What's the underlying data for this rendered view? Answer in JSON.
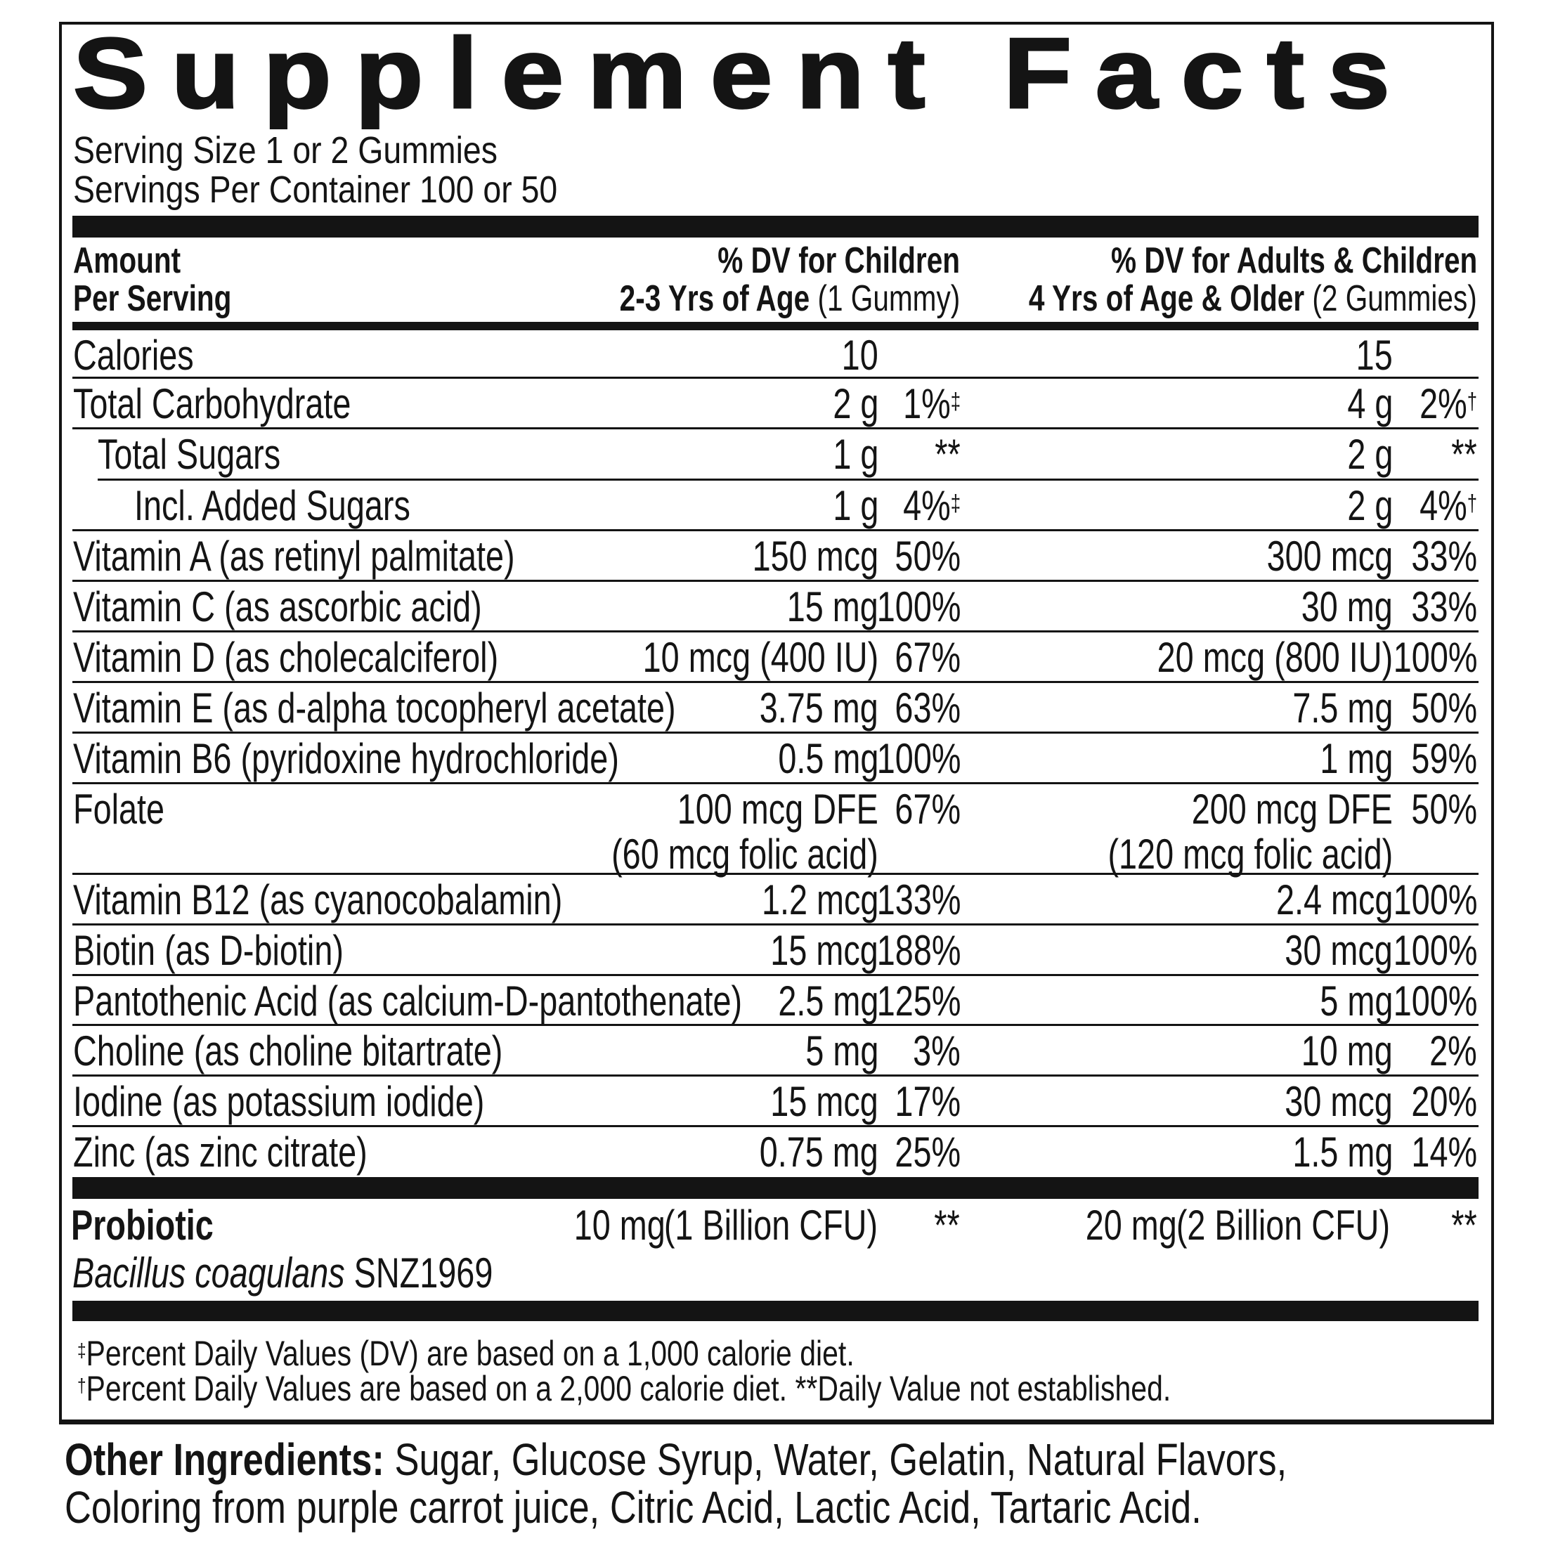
{
  "title": "Supplement Facts",
  "serving_size": "Serving Size 1 or 2 Gummies",
  "servings_per_container": "Servings Per Container 100 or 50",
  "header": {
    "amount_line1": "Amount",
    "amount_line2": "Per Serving",
    "children_line1": "% DV for Children",
    "children_line2_bold": "2-3 Yrs of Age",
    "children_line2_note": "(1 Gummy)",
    "adults_line1": "% DV for Adults & Children",
    "adults_line2_bold": "4 Yrs of Age & Older",
    "adults_line2_note": "(2 Gummies)"
  },
  "rows": [
    {
      "label": "Calories",
      "level": 0,
      "child_amount": "10",
      "child_dv": "",
      "child_mark": "",
      "adult_amount": "15",
      "adult_dv": "",
      "adult_mark": ""
    },
    {
      "label": "Total Carbohydrate",
      "level": 0,
      "child_amount": "2 g",
      "child_dv": "1%",
      "child_mark": "‡",
      "adult_amount": "4 g",
      "adult_dv": "2%",
      "adult_mark": "†"
    },
    {
      "label": "Total Sugars",
      "level": 1,
      "child_amount": "1 g",
      "child_dv": "**",
      "child_mark": "",
      "adult_amount": "2 g",
      "adult_dv": "**",
      "adult_mark": ""
    },
    {
      "label": "Incl. Added Sugars",
      "level": 2,
      "child_amount": "1 g",
      "child_dv": "4%",
      "child_mark": "‡",
      "adult_amount": "2 g",
      "adult_dv": "4%",
      "adult_mark": "†"
    },
    {
      "label": "Vitamin A (as retinyl palmitate)",
      "level": 0,
      "child_amount": "150 mcg",
      "child_dv": "50%",
      "child_mark": "",
      "adult_amount": "300 mcg",
      "adult_dv": "33%",
      "adult_mark": ""
    },
    {
      "label": "Vitamin C (as ascorbic acid)",
      "level": 0,
      "child_amount": "15 mg",
      "child_dv": "100%",
      "child_mark": "",
      "adult_amount": "30 mg",
      "adult_dv": "33%",
      "adult_mark": ""
    },
    {
      "label": "Vitamin D (as cholecalciferol)",
      "level": 0,
      "child_amount": "10 mcg (400 IU)",
      "child_dv": "67%",
      "child_mark": "",
      "adult_amount": "20 mcg (800 IU)",
      "adult_dv": "100%",
      "adult_mark": ""
    },
    {
      "label": "Vitamin E (as d-alpha tocopheryl acetate)",
      "level": 0,
      "child_amount": "3.75 mg",
      "child_dv": "63%",
      "child_mark": "",
      "adult_amount": "7.5 mg",
      "adult_dv": "50%",
      "adult_mark": ""
    },
    {
      "label": "Vitamin B6 (pyridoxine hydrochloride)",
      "level": 0,
      "child_amount": "0.5 mg",
      "child_dv": "100%",
      "child_mark": "",
      "adult_amount": "1 mg",
      "adult_dv": "59%",
      "adult_mark": ""
    },
    {
      "label": "Folate",
      "level": 0,
      "child_amount": "100 mcg DFE",
      "child_amount2": "(60 mcg folic acid)",
      "child_dv": "67%",
      "child_mark": "",
      "adult_amount": "200 mcg DFE",
      "adult_amount2": "(120 mcg folic acid)",
      "adult_dv": "50%",
      "adult_mark": ""
    },
    {
      "label": "Vitamin B12 (as cyanocobalamin)",
      "level": 0,
      "child_amount": "1.2 mcg",
      "child_dv": "133%",
      "child_mark": "",
      "adult_amount": "2.4 mcg",
      "adult_dv": "100%",
      "adult_mark": ""
    },
    {
      "label": "Biotin (as D-biotin)",
      "level": 0,
      "child_amount": "15 mcg",
      "child_dv": "188%",
      "child_mark": "",
      "adult_amount": "30 mcg",
      "adult_dv": "100%",
      "adult_mark": ""
    },
    {
      "label": "Pantothenic Acid (as calcium-D-pantothenate)",
      "level": 0,
      "child_amount": "2.5 mg",
      "child_dv": "125%",
      "child_mark": "",
      "adult_amount": "5 mg",
      "adult_dv": "100%",
      "adult_mark": ""
    },
    {
      "label": "Choline (as choline bitartrate)",
      "level": 0,
      "child_amount": "5 mg",
      "child_dv": "3%",
      "child_mark": "",
      "adult_amount": "10 mg",
      "adult_dv": "2%",
      "adult_mark": ""
    },
    {
      "label": "Iodine (as potassium iodide)",
      "level": 0,
      "child_amount": "15 mcg",
      "child_dv": "17%",
      "child_mark": "",
      "adult_amount": "30 mcg",
      "adult_dv": "20%",
      "adult_mark": ""
    },
    {
      "label": "Zinc (as zinc citrate)",
      "level": 0,
      "child_amount": "0.75 mg",
      "child_dv": "25%",
      "child_mark": "",
      "adult_amount": "1.5 mg",
      "adult_dv": "14%",
      "adult_mark": ""
    }
  ],
  "probiotic": {
    "label": "Probiotic",
    "strain_italic": "Bacillus coagulans",
    "strain_code": "SNZ1969",
    "child_mg": "10 mg",
    "child_cfu": "(1 Billion CFU)",
    "child_dv": "**",
    "adult_mg": "20 mg",
    "adult_cfu": "(2 Billion CFU)",
    "adult_dv": "**"
  },
  "footnotes": [
    {
      "mark": "‡",
      "text": "Percent Daily Values (DV) are based on a 1,000 calorie diet."
    },
    {
      "mark": "†",
      "text": "Percent Daily Values are based on a 2,000 calorie diet. **Daily Value not established."
    }
  ],
  "other_ingredients": {
    "label": "Other Ingredients:",
    "line1": " Sugar, Glucose Syrup, Water, Gelatin, Natural Flavors,",
    "line2": "Coloring from purple carrot juice, Citric Acid, Lactic Acid, Tartaric Acid."
  }
}
